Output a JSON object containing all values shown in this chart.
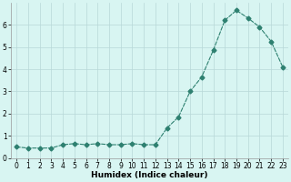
{
  "x": [
    0,
    1,
    2,
    3,
    4,
    5,
    6,
    7,
    8,
    9,
    10,
    11,
    12,
    13,
    14,
    15,
    16,
    17,
    18,
    19,
    20,
    21,
    22,
    23
  ],
  "y": [
    0.5,
    0.45,
    0.45,
    0.45,
    0.6,
    0.65,
    0.6,
    0.65,
    0.6,
    0.6,
    0.65,
    0.6,
    0.6,
    1.35,
    1.85,
    3.0,
    3.65,
    4.85,
    6.2,
    6.65,
    6.3,
    5.9,
    5.25,
    4.1
  ],
  "line_color": "#2e8070",
  "marker": "D",
  "marker_size": 2.5,
  "bg_color": "#d8f5f2",
  "grid_color_major": "#b8d8d8",
  "grid_color_minor": "#c8e8e8",
  "xlabel": "Humidex (Indice chaleur)",
  "xlim": [
    -0.5,
    23.5
  ],
  "ylim": [
    0,
    7
  ],
  "yticks": [
    0,
    1,
    2,
    3,
    4,
    5,
    6
  ],
  "xticks": [
    0,
    1,
    2,
    3,
    4,
    5,
    6,
    7,
    8,
    9,
    10,
    11,
    12,
    13,
    14,
    15,
    16,
    17,
    18,
    19,
    20,
    21,
    22,
    23
  ],
  "tick_fontsize": 5.5,
  "xlabel_fontsize": 6.5
}
